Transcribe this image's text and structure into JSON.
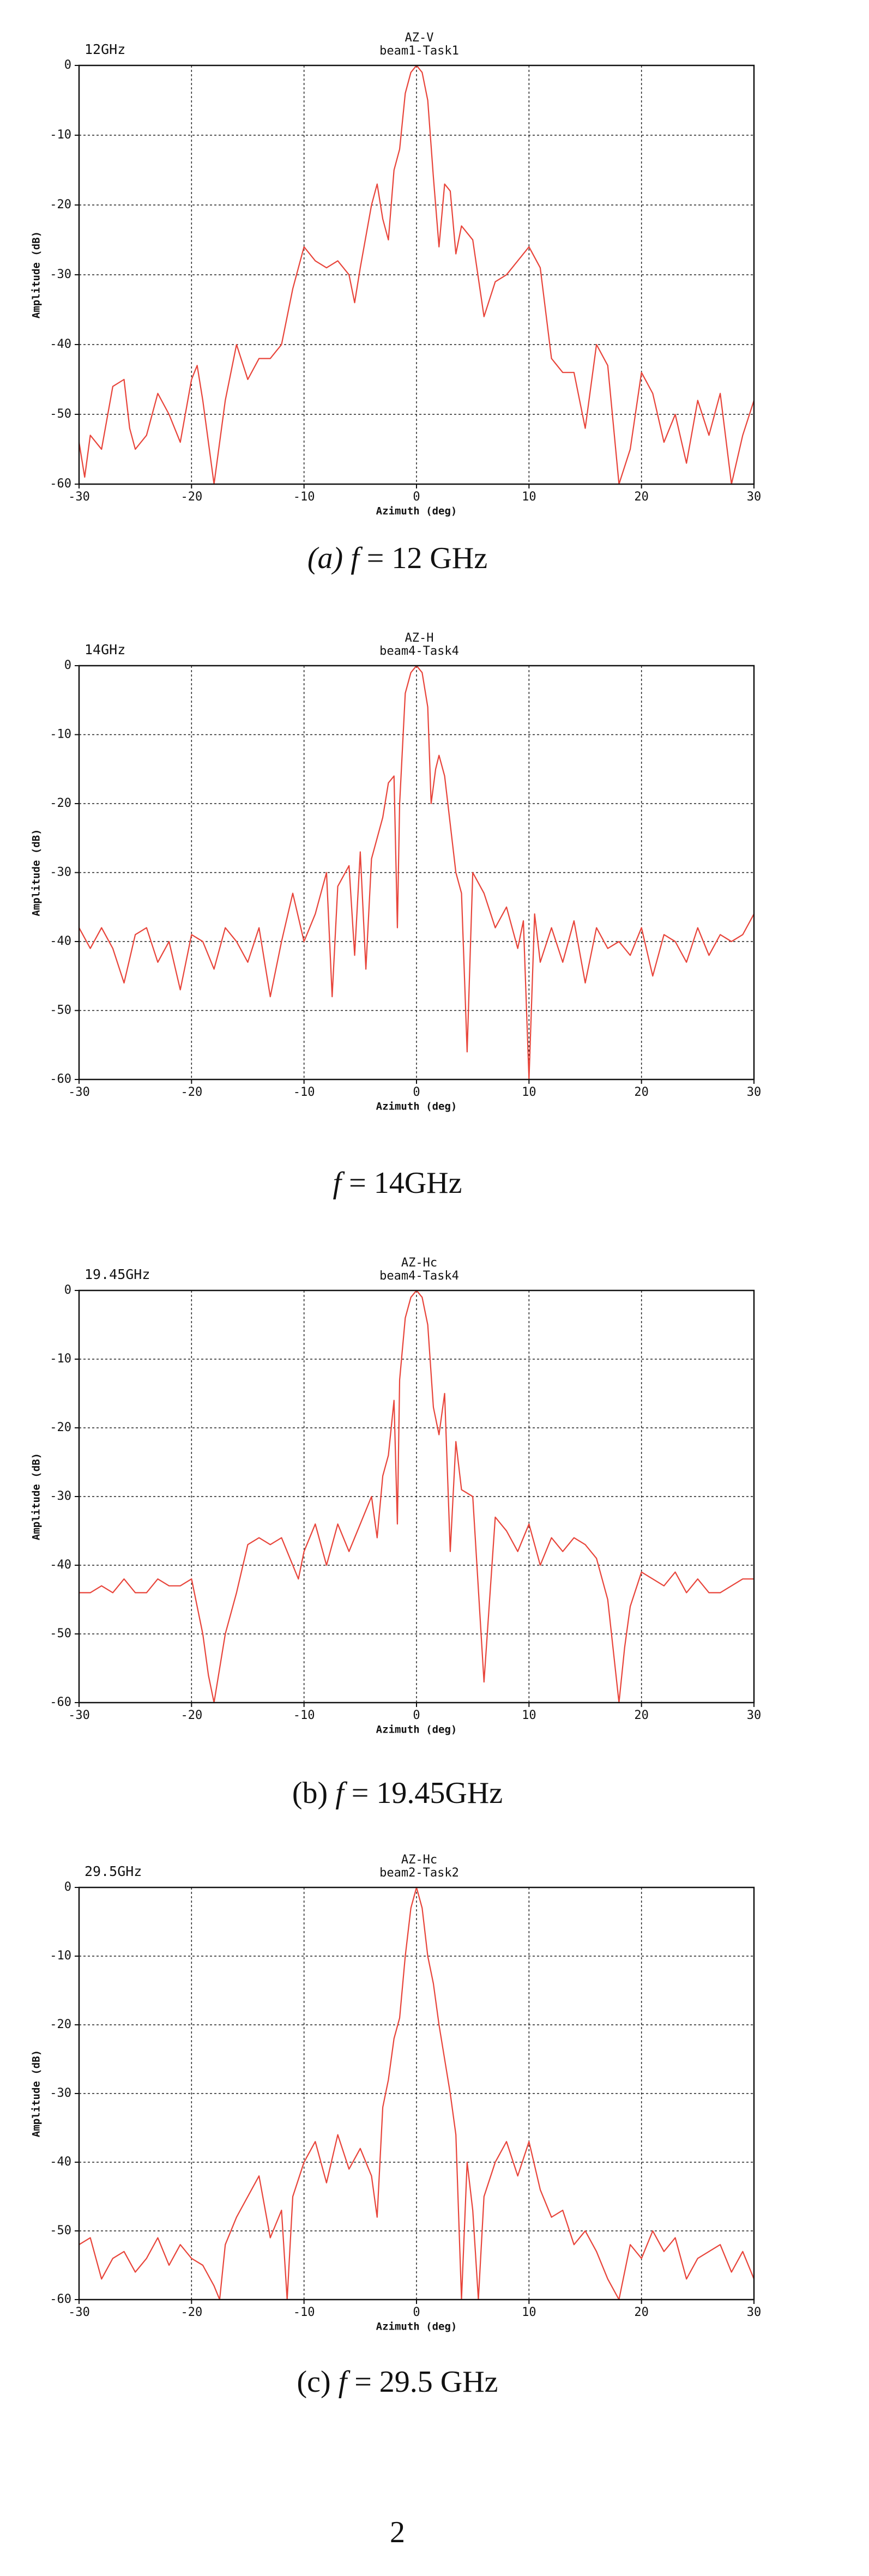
{
  "chart_data": [
    {
      "type": "line",
      "annotation": "12GHz",
      "title": "AZ-V",
      "subtitle": "beam1-Task1",
      "xlabel": "Azimuth (deg)",
      "ylabel": "Amplitude (dB)",
      "xlim": [
        -30,
        30
      ],
      "xticks": [
        -30,
        -20,
        -10,
        0,
        10,
        20,
        30
      ],
      "ylim": [
        -60,
        0
      ],
      "yticks": [
        0,
        -10,
        -20,
        -30,
        -40,
        -50,
        -60
      ],
      "grid": true,
      "x": [
        -30,
        -29.5,
        -29,
        -28,
        -27,
        -26,
        -25.5,
        -25,
        -24,
        -23,
        -22,
        -21,
        -20,
        -19.5,
        -19,
        -18,
        -17,
        -16,
        -15,
        -14,
        -13,
        -12,
        -11,
        -10,
        -9,
        -8,
        -7,
        -6,
        -5.5,
        -5,
        -4,
        -3.5,
        -3,
        -2.5,
        -2,
        -1.5,
        -1,
        -0.5,
        0,
        0.5,
        1,
        1.5,
        2,
        2.5,
        3,
        3.5,
        4,
        5,
        6,
        7,
        8,
        9,
        10,
        11,
        12,
        13,
        14,
        15,
        16,
        17,
        18,
        19,
        20,
        21,
        22,
        23,
        24,
        25,
        26,
        27,
        28,
        29,
        30
      ],
      "series": [
        {
          "color": "#e8443a",
          "values": [
            -54,
            -59,
            -53,
            -55,
            -46,
            -45,
            -52,
            -55,
            -53,
            -47,
            -50,
            -54,
            -45,
            -43,
            -48,
            -60,
            -48,
            -40,
            -45,
            -42,
            -42,
            -40,
            -32,
            -26,
            -28,
            -29,
            -28,
            -30,
            -34,
            -29,
            -20,
            -17,
            -22,
            -25,
            -15,
            -12,
            -4,
            -1,
            0,
            -1,
            -5,
            -16,
            -26,
            -17,
            -18,
            -27,
            -23,
            -25,
            -36,
            -31,
            -30,
            -28,
            -26,
            -29,
            -42,
            -44,
            -44,
            -52,
            -40,
            -43,
            -60,
            -55,
            -44,
            -47,
            -54,
            -50,
            -57,
            -48,
            -53,
            -47,
            -60,
            -53,
            -48
          ]
        }
      ]
    },
    {
      "type": "line",
      "annotation": "14GHz",
      "title": "AZ-H",
      "subtitle": "beam4-Task4",
      "xlabel": "Azimuth (deg)",
      "ylabel": "Amplitude (dB)",
      "xlim": [
        -30,
        30
      ],
      "xticks": [
        -30,
        -20,
        -10,
        0,
        10,
        20,
        30
      ],
      "ylim": [
        -60,
        0
      ],
      "yticks": [
        0,
        -10,
        -20,
        -30,
        -40,
        -50,
        -60
      ],
      "grid": true,
      "x": [
        -30,
        -29,
        -28,
        -27,
        -26,
        -25,
        -24,
        -23,
        -22,
        -21,
        -20,
        -19,
        -18,
        -17,
        -16,
        -15,
        -14,
        -13,
        -12,
        -11,
        -10,
        -9,
        -8,
        -7.5,
        -7,
        -6,
        -5.5,
        -5,
        -4.5,
        -4,
        -3,
        -2.5,
        -2,
        -1.7,
        -1.5,
        -1,
        -0.5,
        0,
        0.5,
        1,
        1.3,
        1.7,
        2,
        2.5,
        3,
        3.5,
        4,
        4.5,
        5,
        6,
        7,
        8,
        9,
        9.5,
        10,
        10.5,
        11,
        12,
        13,
        14,
        15,
        16,
        17,
        18,
        19,
        20,
        21,
        22,
        23,
        24,
        25,
        26,
        27,
        28,
        29,
        30
      ],
      "series": [
        {
          "color": "#e8443a",
          "values": [
            -38,
            -41,
            -38,
            -41,
            -46,
            -39,
            -38,
            -43,
            -40,
            -47,
            -39,
            -40,
            -44,
            -38,
            -40,
            -43,
            -38,
            -48,
            -40,
            -33,
            -40,
            -36,
            -30,
            -48,
            -32,
            -29,
            -42,
            -27,
            -44,
            -28,
            -22,
            -17,
            -16,
            -38,
            -20,
            -4,
            -1,
            0,
            -1,
            -6,
            -20,
            -15,
            -13,
            -16,
            -23,
            -30,
            -33,
            -56,
            -30,
            -33,
            -38,
            -35,
            -41,
            -37,
            -60,
            -36,
            -43,
            -38,
            -43,
            -37,
            -46,
            -38,
            -41,
            -40,
            -42,
            -38,
            -45,
            -39,
            -40,
            -43,
            -38,
            -42,
            -39,
            -40,
            -39,
            -36
          ]
        }
      ]
    },
    {
      "type": "line",
      "annotation": "19.45GHz",
      "title": "AZ-Hc",
      "subtitle": "beam4-Task4",
      "xlabel": "Azimuth (deg)",
      "ylabel": "Amplitude (dB)",
      "xlim": [
        -30,
        30
      ],
      "xticks": [
        -30,
        -20,
        -10,
        0,
        10,
        20,
        30
      ],
      "ylim": [
        -60,
        0
      ],
      "yticks": [
        0,
        -10,
        -20,
        -30,
        -40,
        -50,
        -60
      ],
      "grid": true,
      "x": [
        -30,
        -29,
        -28,
        -27,
        -26,
        -25,
        -24,
        -23,
        -22,
        -21,
        -20,
        -19,
        -18.5,
        -18,
        -17,
        -16,
        -15,
        -14,
        -13,
        -12,
        -11,
        -10.5,
        -10,
        -9,
        -8,
        -7,
        -6,
        -5,
        -4,
        -3.5,
        -3,
        -2.5,
        -2,
        -1.7,
        -1.5,
        -1,
        -0.5,
        0,
        0.5,
        1,
        1.5,
        2,
        2.5,
        3,
        3.5,
        4,
        5,
        6,
        7,
        8,
        9,
        10,
        11,
        12,
        13,
        14,
        15,
        16,
        17,
        18,
        18.5,
        19,
        20,
        21,
        22,
        23,
        24,
        25,
        26,
        27,
        28,
        29,
        30
      ],
      "series": [
        {
          "color": "#e8443a",
          "values": [
            -44,
            -44,
            -43,
            -44,
            -42,
            -44,
            -44,
            -42,
            -43,
            -43,
            -42,
            -50,
            -56,
            -60,
            -50,
            -44,
            -37,
            -36,
            -37,
            -36,
            -40,
            -42,
            -38,
            -34,
            -40,
            -34,
            -38,
            -34,
            -30,
            -36,
            -27,
            -24,
            -16,
            -34,
            -13,
            -4,
            -1,
            0,
            -1,
            -5,
            -17,
            -21,
            -15,
            -38,
            -22,
            -29,
            -30,
            -57,
            -33,
            -35,
            -38,
            -34,
            -40,
            -36,
            -38,
            -36,
            -37,
            -39,
            -45,
            -60,
            -52,
            -46,
            -41,
            -42,
            -43,
            -41,
            -44,
            -42,
            -44,
            -44,
            -43,
            -42,
            -42
          ]
        }
      ]
    },
    {
      "type": "line",
      "annotation": "29.5GHz",
      "title": "AZ-Hc",
      "subtitle": "beam2-Task2",
      "xlabel": "Azimuth (deg)",
      "ylabel": "Amplitude (dB)",
      "xlim": [
        -30,
        30
      ],
      "xticks": [
        -30,
        -20,
        -10,
        0,
        10,
        20,
        30
      ],
      "ylim": [
        -60,
        0
      ],
      "yticks": [
        0,
        -10,
        -20,
        -30,
        -40,
        -50,
        -60
      ],
      "grid": true,
      "x": [
        -30,
        -29,
        -28,
        -27,
        -26,
        -25,
        -24,
        -23,
        -22,
        -21,
        -20,
        -19,
        -18,
        -17.5,
        -17,
        -16,
        -15,
        -14,
        -13,
        -12,
        -11.5,
        -11,
        -10,
        -9,
        -8,
        -7,
        -6,
        -5,
        -4,
        -3.5,
        -3,
        -2.5,
        -2,
        -1.5,
        -1,
        -0.5,
        0,
        0.5,
        1,
        1.5,
        2,
        2.5,
        3,
        3.5,
        4,
        4.5,
        5,
        5.5,
        6,
        7,
        8,
        9,
        10,
        11,
        12,
        13,
        14,
        15,
        16,
        17,
        18,
        19,
        20,
        21,
        22,
        23,
        24,
        25,
        26,
        27,
        28,
        29,
        30
      ],
      "series": [
        {
          "color": "#e8443a",
          "values": [
            -52,
            -51,
            -57,
            -54,
            -53,
            -56,
            -54,
            -51,
            -55,
            -52,
            -54,
            -55,
            -58,
            -60,
            -52,
            -48,
            -45,
            -42,
            -51,
            -47,
            -60,
            -45,
            -40,
            -37,
            -43,
            -36,
            -41,
            -38,
            -42,
            -48,
            -32,
            -28,
            -22,
            -19,
            -10,
            -3,
            0,
            -3,
            -10,
            -14,
            -20,
            -25,
            -30,
            -36,
            -60,
            -40,
            -47,
            -60,
            -45,
            -40,
            -37,
            -42,
            -37,
            -44,
            -48,
            -47,
            -52,
            -50,
            -53,
            -57,
            -60,
            -52,
            -54,
            -50,
            -53,
            -51,
            -57,
            -54,
            -53,
            -52,
            -56,
            -53,
            -57
          ]
        }
      ]
    }
  ],
  "captions": [
    [
      {
        "text": "(a) f",
        "italic": true
      },
      {
        "text": " = 12 GHz"
      }
    ],
    [
      {
        "text": "f",
        "italic": true
      },
      {
        "text": " = 14GHz"
      }
    ],
    [
      {
        "text": "(b) "
      },
      {
        "text": "f",
        "italic": true
      },
      {
        "text": " = 19.45GHz"
      }
    ],
    [
      {
        "text": "(c) "
      },
      {
        "text": "f",
        "italic": true
      },
      {
        "text": " = 29.5 GHz"
      }
    ]
  ],
  "page_number": "2"
}
